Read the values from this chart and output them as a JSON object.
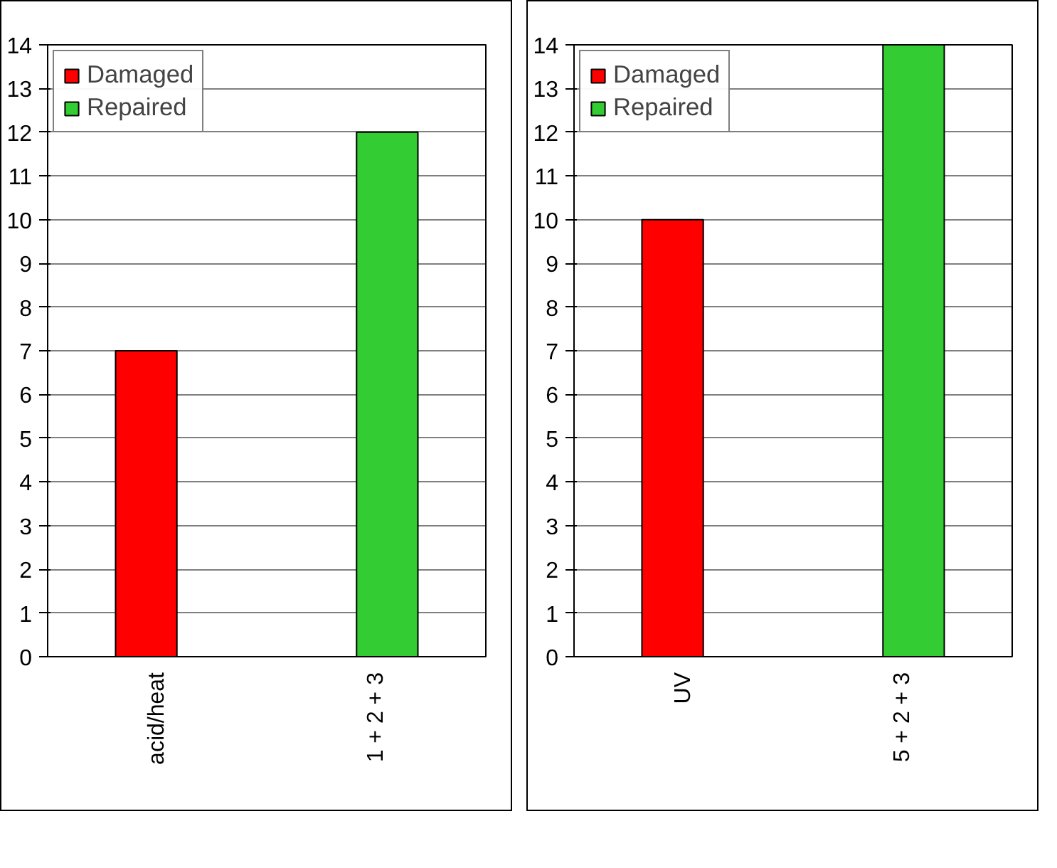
{
  "chart_data": [
    {
      "type": "bar",
      "categories": [
        "acid/heat",
        "1 + 2 + 3"
      ],
      "series": [
        {
          "name": "Damaged",
          "color": "#ff0000",
          "values": [
            7,
            null
          ]
        },
        {
          "name": "Repaired",
          "color": "#33cc33",
          "values": [
            null,
            12
          ]
        }
      ],
      "ylim": [
        0,
        14
      ],
      "yticks": [
        0,
        1,
        2,
        3,
        4,
        5,
        6,
        7,
        8,
        9,
        10,
        11,
        12,
        13,
        14
      ],
      "grid": "y",
      "legend": "top left"
    },
    {
      "type": "bar",
      "categories": [
        "UV",
        "5 + 2 + 3"
      ],
      "series": [
        {
          "name": "Damaged",
          "color": "#ff0000",
          "values": [
            10,
            null
          ]
        },
        {
          "name": "Repaired",
          "color": "#33cc33",
          "values": [
            null,
            14
          ]
        }
      ],
      "ylim": [
        0,
        14
      ],
      "yticks": [
        0,
        1,
        2,
        3,
        4,
        5,
        6,
        7,
        8,
        9,
        10,
        11,
        12,
        13,
        14
      ],
      "grid": "y",
      "legend": "top left"
    }
  ]
}
